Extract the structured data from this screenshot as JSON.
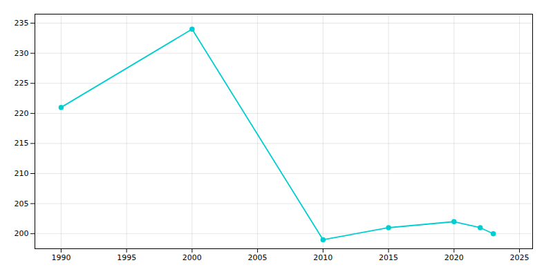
{
  "chart_data": {
    "type": "line",
    "x": [
      1990,
      2000,
      2010,
      2015,
      2020,
      2022,
      2023
    ],
    "values": [
      221,
      234,
      199,
      201,
      202,
      201,
      200
    ],
    "color": "#00CED1",
    "marker": "circle",
    "xlim": [
      1988,
      2026
    ],
    "ylim": [
      197.5,
      236.5
    ],
    "xticks": [
      1990,
      1995,
      2000,
      2005,
      2010,
      2015,
      2020,
      2025
    ],
    "yticks": [
      200,
      205,
      210,
      215,
      220,
      225,
      230,
      235
    ],
    "grid": true
  }
}
